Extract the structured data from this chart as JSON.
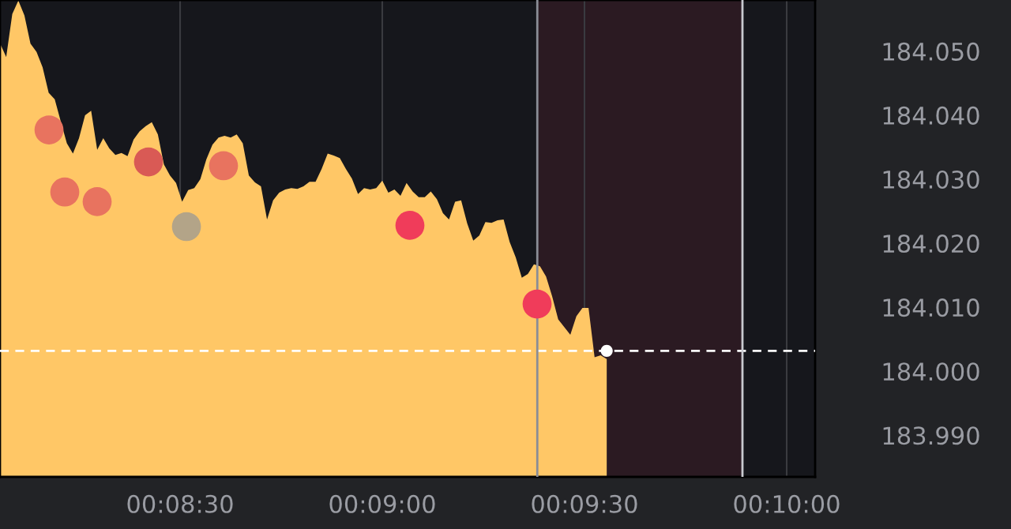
{
  "chart_data": {
    "type": "area",
    "xlim": [
      0.134244,
      0.167839
    ],
    "ylim": [
      183.9835,
      184.058
    ],
    "xticks": [
      {
        "value": 0.141667,
        "label": "00:08:30"
      },
      {
        "value": 0.15,
        "label": "00:09:00"
      },
      {
        "value": 0.158333,
        "label": "00:09:30"
      },
      {
        "value": 0.166667,
        "label": "00:10:00"
      }
    ],
    "yticks": [
      {
        "value": 183.99,
        "label": "183.990"
      },
      {
        "value": 184.0,
        "label": "184.000"
      },
      {
        "value": 184.01,
        "label": "184.010"
      },
      {
        "value": 184.02,
        "label": "184.020"
      },
      {
        "value": 184.03,
        "label": "184.030"
      },
      {
        "value": 184.04,
        "label": "184.040"
      },
      {
        "value": 184.05,
        "label": "184.050"
      }
    ],
    "grid": "x",
    "series": [
      {
        "color": "#ffc766",
        "x": [
          0.13425,
          0.1345,
          0.13475,
          0.135,
          0.13525,
          0.1355,
          0.13575,
          0.136,
          0.13625,
          0.1365,
          0.13675,
          0.137,
          0.13725,
          0.1375,
          0.13775,
          0.138,
          0.13825,
          0.1385,
          0.13875,
          0.139,
          0.13925,
          0.1395,
          0.13975,
          0.14,
          0.14025,
          0.1405,
          0.14075,
          0.141,
          0.14125,
          0.1415,
          0.14175,
          0.142,
          0.14225,
          0.1425,
          0.14275,
          0.143,
          0.14325,
          0.1435,
          0.14375,
          0.144,
          0.14425,
          0.1445,
          0.14475,
          0.145,
          0.14525,
          0.1455,
          0.14575,
          0.146,
          0.14625,
          0.1465,
          0.14675,
          0.147,
          0.14725,
          0.1475,
          0.14775,
          0.148,
          0.14825,
          0.1485,
          0.14875,
          0.149,
          0.14925,
          0.1495,
          0.14975,
          0.15,
          0.15025,
          0.1505,
          0.15075,
          0.151,
          0.15125,
          0.1515,
          0.15175,
          0.152,
          0.15225,
          0.1525,
          0.15275,
          0.153,
          0.15325,
          0.1535,
          0.15375,
          0.154,
          0.15425,
          0.1545,
          0.15475,
          0.155,
          0.15525,
          0.1555,
          0.15575,
          0.156,
          0.15625,
          0.1565,
          0.15675,
          0.157,
          0.15725,
          0.1575,
          0.15775,
          0.158,
          0.15825,
          0.1585,
          0.15875,
          0.159,
          0.15925
        ],
        "values": [
          184.0512,
          184.0491,
          184.0558,
          184.0579,
          184.0556,
          184.0512,
          184.0499,
          184.0475,
          184.0435,
          184.0425,
          184.039,
          184.0356,
          184.034,
          184.0364,
          184.04,
          184.0407,
          184.0346,
          184.0364,
          184.0348,
          184.0338,
          184.0341,
          184.0336,
          184.0362,
          184.0375,
          184.0383,
          184.0389,
          184.037,
          184.0323,
          184.0306,
          184.0294,
          184.0265,
          184.0283,
          184.0286,
          184.03,
          184.0331,
          184.0354,
          184.0365,
          184.0368,
          184.0365,
          184.037,
          184.0356,
          184.0306,
          184.0295,
          184.0289,
          184.0237,
          184.0267,
          184.0279,
          184.0284,
          184.0286,
          184.0285,
          184.0289,
          184.0296,
          184.0296,
          184.0316,
          184.034,
          184.0337,
          184.0333,
          184.0316,
          184.0301,
          184.0277,
          184.0286,
          184.0284,
          184.0286,
          184.0298,
          184.0279,
          184.0284,
          184.0274,
          184.0294,
          184.0281,
          184.0272,
          184.0272,
          184.0281,
          184.0269,
          184.0247,
          184.0237,
          184.0265,
          184.0267,
          184.0231,
          184.0204,
          184.0212,
          184.0233,
          184.0232,
          184.0236,
          184.0237,
          184.0202,
          184.0178,
          184.0146,
          184.0152,
          184.0167,
          184.0164,
          184.0148,
          184.0117,
          184.0081,
          184.0069,
          184.0057,
          184.0086,
          184.0099,
          184.0099,
          184.0022,
          184.0025,
          184.0019
        ]
      },
      {
        "type": "scatter",
        "marker": "circle",
        "x": [
          0.136264,
          0.136914,
          0.138248,
          0.140364,
          0.141928,
          0.143456,
          0.151139,
          0.156381
        ],
        "values": [
          184.0377,
          184.028,
          184.0265,
          184.0327,
          184.0226,
          184.0321,
          184.0228,
          184.0105
        ],
        "colors": [
          "#e8735f",
          "#e8735f",
          "#e8735f",
          "#d95a55",
          "#b3a488",
          "#e8735f",
          "#f03c5a",
          "#f03c5a"
        ]
      },
      {
        "type": "scatter",
        "marker": "circle",
        "color": "#ffffff",
        "x": [
          0.15925
        ],
        "values": [
          184.0032
        ]
      }
    ],
    "ref_lines": [
      {
        "axis": "y",
        "value": 184.0032,
        "color": "#ffffff",
        "line_style": "dashed"
      },
      {
        "axis": "x",
        "value": 0.156389,
        "color": "#8a8d96",
        "line_style": "solid"
      },
      {
        "axis": "x",
        "value": 0.164844,
        "color": "#c8cad0",
        "line_style": "solid"
      }
    ],
    "bands": [
      {
        "axis": "x",
        "from": 0.156389,
        "to": 0.164844,
        "color": "#3a1d26"
      }
    ]
  }
}
